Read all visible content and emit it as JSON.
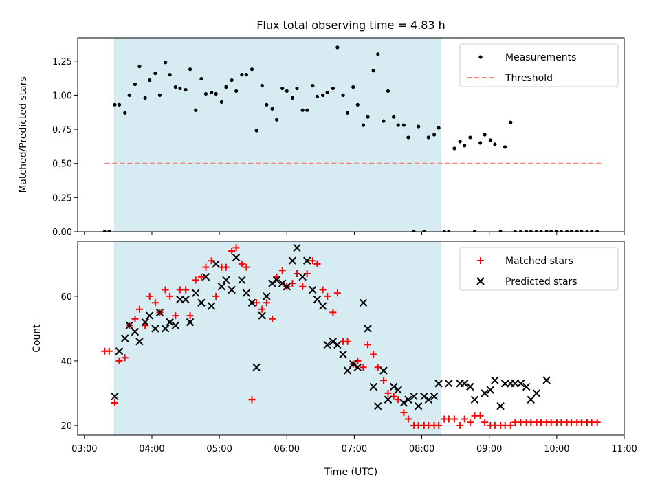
{
  "chart_data": [
    {
      "type": "scatter",
      "title": "Flux total observing time = 4.83 h",
      "xlabel": "",
      "ylabel": "Matched/Predicted stars",
      "xlim": [
        "03:00",
        "11:00"
      ],
      "ylim": [
        0,
        1.42
      ],
      "yticks": [
        "0.00",
        "0.25",
        "0.50",
        "0.75",
        "1.00",
        "1.25"
      ],
      "xticks": [
        "03:00",
        "04:00",
        "05:00",
        "06:00",
        "07:00",
        "08:00",
        "09:00",
        "10:00",
        "11:00"
      ],
      "shaded_span": [
        "03:27",
        "08:17"
      ],
      "legend": {
        "placement": "upper right",
        "entries": [
          "Measurements",
          "Threshold"
        ]
      },
      "threshold": {
        "name": "Threshold",
        "value": 0.5,
        "x_range": [
          "03:18",
          "10:40"
        ],
        "color": "#ff7f7f"
      },
      "series": [
        {
          "name": "Measurements",
          "color": "#000000",
          "x": [
            "03:18",
            "03:22",
            "03:27",
            "03:31",
            "03:36",
            "03:40",
            "03:45",
            "03:49",
            "03:54",
            "03:58",
            "04:03",
            "04:07",
            "04:12",
            "04:16",
            "04:21",
            "04:25",
            "04:30",
            "04:34",
            "04:39",
            "04:44",
            "04:48",
            "04:53",
            "04:57",
            "05:02",
            "05:06",
            "05:11",
            "05:15",
            "05:20",
            "05:24",
            "05:29",
            "05:33",
            "05:38",
            "05:42",
            "05:47",
            "05:51",
            "05:56",
            "06:00",
            "06:05",
            "06:09",
            "06:14",
            "06:18",
            "06:23",
            "06:27",
            "06:32",
            "06:36",
            "06:41",
            "06:45",
            "06:50",
            "06:54",
            "06:59",
            "07:03",
            "07:08",
            "07:12",
            "07:17",
            "07:21",
            "07:26",
            "07:30",
            "07:35",
            "07:39",
            "07:44",
            "07:48",
            "07:53",
            "07:57",
            "08:02",
            "08:06",
            "08:11",
            "08:15",
            "08:20",
            "08:24",
            "08:29",
            "08:34",
            "08:38",
            "08:43",
            "08:47",
            "08:52",
            "08:56",
            "09:01",
            "09:05",
            "09:10",
            "09:14",
            "09:19",
            "09:23",
            "09:28",
            "09:33",
            "09:37",
            "09:42",
            "09:46",
            "09:51",
            "09:55",
            "10:00",
            "10:04",
            "10:09",
            "10:13",
            "10:18",
            "10:22",
            "10:27",
            "10:31",
            "10:36"
          ],
          "y": [
            0,
            0,
            0.93,
            0.93,
            0.87,
            1.0,
            1.08,
            1.21,
            0.98,
            1.11,
            1.16,
            1.0,
            1.24,
            1.15,
            1.06,
            1.05,
            1.04,
            1.19,
            0.89,
            1.12,
            1.01,
            1.02,
            1.01,
            0.95,
            1.06,
            1.11,
            1.03,
            1.15,
            1.15,
            1.19,
            0.74,
            1.07,
            0.93,
            0.9,
            0.82,
            1.05,
            1.03,
            0.98,
            1.05,
            0.89,
            0.89,
            1.07,
            0.99,
            1.0,
            1.02,
            1.05,
            1.35,
            1.0,
            0.87,
            1.06,
            0.93,
            0.78,
            0.84,
            1.18,
            1.3,
            0.81,
            1.03,
            0.84,
            0.78,
            0.78,
            0.69,
            0,
            0.77,
            0,
            0.69,
            0.71,
            0.76,
            0,
            0,
            0.61,
            0.66,
            0.63,
            0.69,
            0,
            0.65,
            0.71,
            0.67,
            0.64,
            0,
            0.62,
            0.8,
            0,
            0,
            0,
            0,
            0,
            0,
            0,
            0,
            0,
            0,
            0,
            0,
            0,
            0,
            0,
            0,
            0
          ]
        }
      ]
    },
    {
      "type": "scatter",
      "title": "",
      "xlabel": "Time (UTC)",
      "ylabel": "Count",
      "xlim": [
        "03:00",
        "11:00"
      ],
      "ylim": [
        17,
        77
      ],
      "yticks": [
        "20",
        "40",
        "60"
      ],
      "xticks": [
        "03:00",
        "04:00",
        "05:00",
        "06:00",
        "07:00",
        "08:00",
        "09:00",
        "10:00",
        "11:00"
      ],
      "shaded_span": [
        "03:27",
        "08:17"
      ],
      "legend": {
        "placement": "upper right",
        "entries": [
          "Matched stars",
          "Predicted stars"
        ]
      },
      "series": [
        {
          "name": "Matched stars",
          "marker": "+",
          "color": "#ff0000",
          "x": [
            "03:18",
            "03:22",
            "03:27",
            "03:31",
            "03:36",
            "03:40",
            "03:45",
            "03:49",
            "03:54",
            "03:58",
            "04:03",
            "04:07",
            "04:12",
            "04:16",
            "04:21",
            "04:25",
            "04:30",
            "04:34",
            "04:39",
            "04:44",
            "04:48",
            "04:53",
            "04:57",
            "05:02",
            "05:06",
            "05:11",
            "05:15",
            "05:20",
            "05:24",
            "05:29",
            "05:33",
            "05:38",
            "05:42",
            "05:47",
            "05:51",
            "05:56",
            "06:00",
            "06:05",
            "06:09",
            "06:14",
            "06:18",
            "06:23",
            "06:27",
            "06:32",
            "06:36",
            "06:41",
            "06:45",
            "06:50",
            "06:54",
            "06:59",
            "07:03",
            "07:08",
            "07:12",
            "07:17",
            "07:21",
            "07:26",
            "07:30",
            "07:35",
            "07:39",
            "07:44",
            "07:48",
            "07:53",
            "07:57",
            "08:02",
            "08:06",
            "08:11",
            "08:15",
            "08:20",
            "08:24",
            "08:29",
            "08:34",
            "08:38",
            "08:43",
            "08:47",
            "08:52",
            "08:56",
            "09:01",
            "09:05",
            "09:10",
            "09:14",
            "09:19",
            "09:23",
            "09:28",
            "09:33",
            "09:37",
            "09:42",
            "09:46",
            "09:51",
            "09:55",
            "10:00",
            "10:04",
            "10:09",
            "10:13",
            "10:18",
            "10:22",
            "10:27",
            "10:31",
            "10:36"
          ],
          "y": [
            43,
            43,
            27,
            40,
            41,
            51,
            53,
            56,
            51,
            60,
            58,
            55,
            62,
            60,
            54,
            62,
            62,
            54,
            65,
            66,
            69,
            71,
            60,
            69,
            69,
            74,
            75,
            70,
            69,
            28,
            58,
            56,
            58,
            53,
            66,
            68,
            63,
            64,
            67,
            63,
            67,
            71,
            70,
            62,
            60,
            55,
            61,
            46,
            46,
            39,
            40,
            38,
            45,
            42,
            38,
            34,
            30,
            29,
            28,
            24,
            22,
            20,
            20,
            20,
            20,
            20,
            20,
            22,
            22,
            22,
            20,
            22,
            21,
            23,
            23,
            21,
            20,
            20,
            20,
            20,
            20,
            21,
            21,
            21,
            21,
            21,
            21,
            21,
            21,
            21,
            21,
            21,
            21,
            21,
            21,
            21,
            21,
            21
          ]
        },
        {
          "name": "Predicted stars",
          "marker": "x",
          "color": "#000000",
          "x": [
            "03:27",
            "03:31",
            "03:36",
            "03:40",
            "03:45",
            "03:49",
            "03:54",
            "03:58",
            "04:03",
            "04:07",
            "04:12",
            "04:16",
            "04:21",
            "04:25",
            "04:30",
            "04:34",
            "04:39",
            "04:44",
            "04:48",
            "04:53",
            "04:57",
            "05:02",
            "05:06",
            "05:11",
            "05:15",
            "05:20",
            "05:24",
            "05:29",
            "05:33",
            "05:38",
            "05:42",
            "05:47",
            "05:51",
            "05:56",
            "06:00",
            "06:05",
            "06:09",
            "06:14",
            "06:18",
            "06:23",
            "06:27",
            "06:32",
            "06:36",
            "06:41",
            "06:45",
            "06:50",
            "06:54",
            "06:59",
            "07:03",
            "07:08",
            "07:12",
            "07:17",
            "07:21",
            "07:26",
            "07:30",
            "07:35",
            "07:39",
            "07:44",
            "07:48",
            "07:53",
            "07:57",
            "08:02",
            "08:06",
            "08:11",
            "08:15",
            "08:24",
            "08:34",
            "08:38",
            "08:43",
            "08:47",
            "08:56",
            "09:01",
            "09:05",
            "09:10",
            "09:14",
            "09:19",
            "09:23",
            "09:28",
            "09:33",
            "09:37",
            "09:42",
            "09:51"
          ],
          "y": [
            29,
            43,
            47,
            51,
            49,
            46,
            52,
            54,
            50,
            55,
            50,
            52,
            51,
            59,
            59,
            52,
            61,
            58,
            66,
            57,
            70,
            63,
            65,
            62,
            72,
            65,
            61,
            58,
            38,
            54,
            60,
            64,
            65,
            64,
            63,
            71,
            75,
            66,
            71,
            62,
            59,
            57,
            45,
            46,
            45,
            42,
            37,
            39,
            38,
            58,
            50,
            32,
            26,
            37,
            28,
            32,
            31,
            27,
            28,
            29,
            26,
            29,
            28,
            29,
            33,
            33,
            33,
            33,
            32,
            28,
            30,
            31,
            34,
            26,
            33,
            33,
            33,
            33,
            32,
            28,
            30,
            34
          ]
        }
      ]
    }
  ]
}
